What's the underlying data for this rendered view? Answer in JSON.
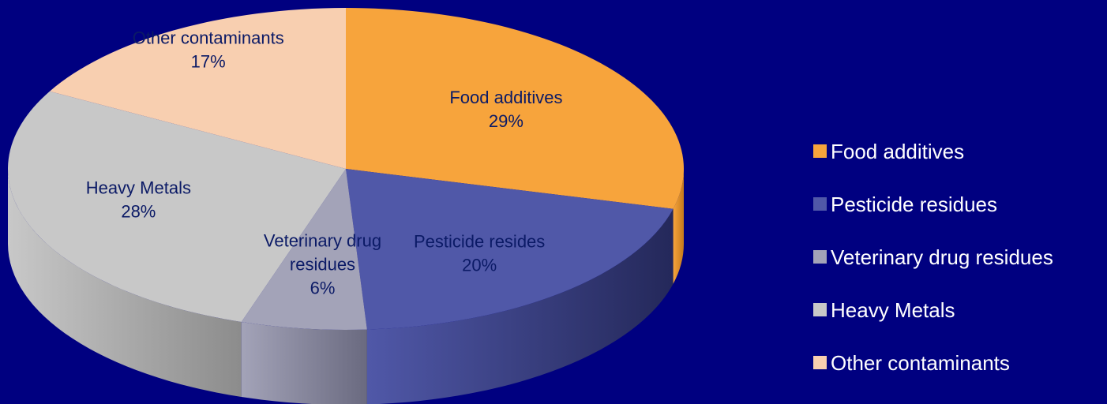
{
  "chart_data": {
    "type": "pie",
    "title": "",
    "three_d": true,
    "legend_position": "right",
    "slices": [
      {
        "legend": "Food additives",
        "label": "Food additives",
        "percent_label": "29%",
        "value": 29,
        "color": "#f7a43c",
        "side_color": "#c47a1c"
      },
      {
        "legend": "Pesticide residues",
        "label": "Pesticide resides",
        "percent_label": "20%",
        "value": 20,
        "color": "#5058a8",
        "side_color": "#24285a"
      },
      {
        "legend": "Veterinary drug residues",
        "label": "Veterinary drug residues",
        "percent_label": "6%",
        "value": 6,
        "color": "#a3a3b8",
        "side_color": "#6a6a80"
      },
      {
        "legend": "Heavy Metals",
        "label": "Heavy Metals",
        "percent_label": "28%",
        "value": 28,
        "color": "#c8c8c8",
        "side_color": "#8c8c8c"
      },
      {
        "legend": "Other contaminants",
        "label": "Other contaminants",
        "percent_label": "17%",
        "value": 17,
        "color": "#f8cfb0",
        "side_color": "#c9a084"
      }
    ]
  },
  "colors": {
    "background": "#000080",
    "label_text": "#0b1a66",
    "legend_text": "#ffffff"
  }
}
